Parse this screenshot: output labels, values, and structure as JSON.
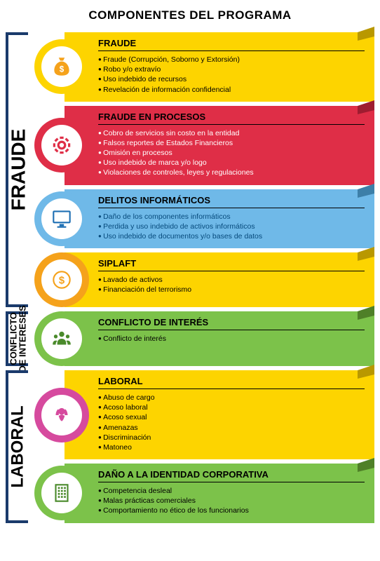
{
  "title": "COMPONENTES DEL PROGRAMA",
  "sections": [
    {
      "label": "FRAUDE",
      "label_fontsize": 28,
      "cards": [
        {
          "heading": "FRAUDE",
          "items": [
            "Fraude (Corrupción, Soborno y Extorsión)",
            "Robo y/o extravío",
            "Uso indebido de recursos",
            "Revelación de información confidencial"
          ],
          "body_bg": "#fdd400",
          "icon_bg": "#fdd400",
          "icon_fg": "#f5a21b",
          "text_color": "#000",
          "title_color": "#000",
          "icon": "moneybag",
          "ribbon_shade": "#b99800"
        },
        {
          "heading": "FRAUDE EN PROCESOS",
          "items": [
            "Cobro de servicios sin costo en la entidad",
            "Falsos reportes de Estados Financieros",
            "Omisión en procesos",
            "Uso indebido de marca y/o logo",
            "Violaciones de controles, leyes y regulaciones"
          ],
          "body_bg": "#df2e47",
          "icon_bg": "#df2e47",
          "icon_fg": "#df2e47",
          "text_color": "#fff",
          "title_color": "#000",
          "icon": "gear",
          "ribbon_shade": "#9e1c30"
        },
        {
          "heading": "DELITOS INFORMÁTICOS",
          "items": [
            "Daño de los componentes informáticos",
            "Perdida y uso indebido de activos informáticos",
            "Uso indebido de documentos y/o bases de datos"
          ],
          "body_bg": "#6fb9e8",
          "icon_bg": "#6fb9e8",
          "icon_fg": "#1e6fb3",
          "text_color": "#064a7c",
          "title_color": "#000",
          "icon": "monitor",
          "ribbon_shade": "#3d7fa8"
        },
        {
          "heading": "SIPLAFT",
          "items": [
            "Lavado de activos",
            "Financiación del terrorismo"
          ],
          "body_bg": "#fdd400",
          "icon_bg": "#f5a21b",
          "icon_fg": "#f5a21b",
          "text_color": "#000",
          "title_color": "#000",
          "icon": "dollar",
          "ribbon_shade": "#b99800"
        }
      ]
    },
    {
      "label": "CONFLICTO\nDE INTERESES",
      "label_fontsize": 13,
      "cards": [
        {
          "heading": "CONFLICTO DE INTERÉS",
          "items": [
            "Conflicto de interés"
          ],
          "body_bg": "#7cc24a",
          "icon_bg": "#7cc24a",
          "icon_fg": "#4a8a2b",
          "text_color": "#000",
          "title_color": "#000",
          "icon": "people",
          "ribbon_shade": "#4f8028"
        }
      ]
    },
    {
      "label": "LABORAL",
      "label_fontsize": 24,
      "cards": [
        {
          "heading": "LABORAL",
          "items": [
            "Abuso de cargo",
            "Acoso laboral",
            "Acoso sexual",
            "Amenazas",
            "Discriminación",
            "Matoneo"
          ],
          "body_bg": "#fdd400",
          "icon_bg": "#d64a9e",
          "icon_fg": "#d64a9e",
          "text_color": "#000",
          "title_color": "#000",
          "icon": "woman",
          "ribbon_shade": "#b99800"
        },
        {
          "heading": "DAÑO A LA IDENTIDAD CORPORATIVA",
          "items": [
            "Competencia desleal",
            "Malas prácticas comerciales",
            "Comportamiento no ético de los funcionarios"
          ],
          "body_bg": "#7cc24a",
          "icon_bg": "#7cc24a",
          "icon_fg": "#4a8a2b",
          "text_color": "#000",
          "title_color": "#000",
          "icon": "building",
          "ribbon_shade": "#4f8028"
        }
      ]
    }
  ]
}
